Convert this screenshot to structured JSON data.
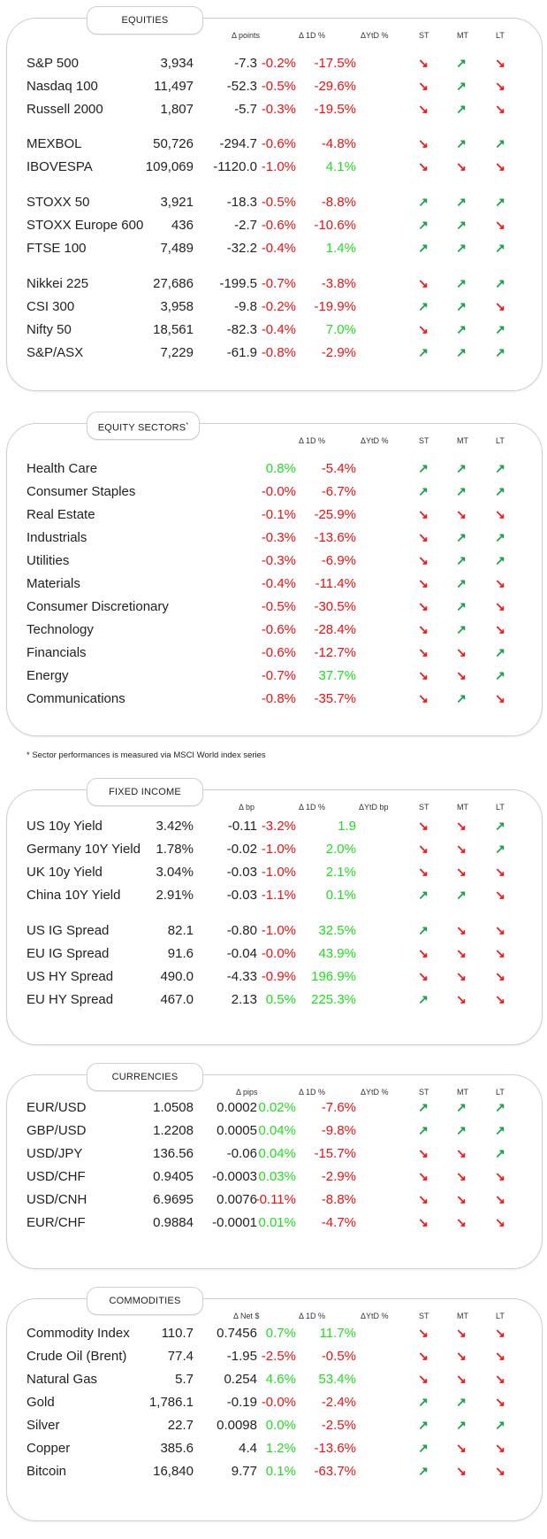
{
  "equities": {
    "title": "EQUITIES",
    "headers": [
      "Δ points",
      "Δ 1D %",
      "ΔYtD %",
      "ST",
      "MT",
      "LT"
    ],
    "groups": [
      [
        {
          "name": "S&P 500",
          "value": "3,934",
          "chg": "-7.3",
          "d1": "-0.2%",
          "ytd": "-17.5%",
          "st": "down",
          "mt": "up",
          "lt": "down"
        },
        {
          "name": "Nasdaq 100",
          "value": "11,497",
          "chg": "-52.3",
          "d1": "-0.5%",
          "ytd": "-29.6%",
          "st": "down",
          "mt": "up",
          "lt": "down"
        },
        {
          "name": "Russell 2000",
          "value": "1,807",
          "chg": "-5.7",
          "d1": "-0.3%",
          "ytd": "-19.5%",
          "st": "down",
          "mt": "up",
          "lt": "down"
        }
      ],
      [
        {
          "name": "MEXBOL",
          "value": "50,726",
          "chg": "-294.7",
          "d1": "-0.6%",
          "ytd": "-4.8%",
          "st": "down",
          "mt": "up",
          "lt": "up"
        },
        {
          "name": "IBOVESPA",
          "value": "109,069",
          "chg": "-1120.0",
          "d1": "-1.0%",
          "ytd": "4.1%",
          "st": "down",
          "mt": "down",
          "lt": "down"
        }
      ],
      [
        {
          "name": "STOXX 50",
          "value": "3,921",
          "chg": "-18.3",
          "d1": "-0.5%",
          "ytd": "-8.8%",
          "st": "up",
          "mt": "up",
          "lt": "up"
        },
        {
          "name": "STOXX Europe 600",
          "value": "436",
          "chg": "-2.7",
          "d1": "-0.6%",
          "ytd": "-10.6%",
          "st": "up",
          "mt": "up",
          "lt": "down"
        },
        {
          "name": "FTSE 100",
          "value": "7,489",
          "chg": "-32.2",
          "d1": "-0.4%",
          "ytd": "1.4%",
          "st": "up",
          "mt": "up",
          "lt": "up"
        }
      ],
      [
        {
          "name": "Nikkei 225",
          "value": "27,686",
          "chg": "-199.5",
          "d1": "-0.7%",
          "ytd": "-3.8%",
          "st": "down",
          "mt": "up",
          "lt": "up"
        },
        {
          "name": "CSI 300",
          "value": "3,958",
          "chg": "-9.8",
          "d1": "-0.2%",
          "ytd": "-19.9%",
          "st": "up",
          "mt": "up",
          "lt": "down"
        },
        {
          "name": "Nifty  50",
          "value": "18,561",
          "chg": "-82.3",
          "d1": "-0.4%",
          "ytd": "7.0%",
          "st": "down",
          "mt": "up",
          "lt": "up"
        },
        {
          "name": "S&P/ASX",
          "value": "7,229",
          "chg": "-61.9",
          "d1": "-0.8%",
          "ytd": "-2.9%",
          "st": "up",
          "mt": "up",
          "lt": "up"
        }
      ]
    ]
  },
  "sectors": {
    "title": "EQUITY SECTORS",
    "title_mark": "*",
    "headers": [
      "Δ 1D %",
      "ΔYtD %",
      "ST",
      "MT",
      "LT"
    ],
    "rows": [
      {
        "name": "Health Care",
        "d1": "0.8%",
        "ytd": "-5.4%",
        "st": "up",
        "mt": "up",
        "lt": "up"
      },
      {
        "name": "Consumer Staples",
        "d1": "-0.0%",
        "ytd": "-6.7%",
        "st": "up",
        "mt": "up",
        "lt": "up"
      },
      {
        "name": "Real Estate",
        "d1": "-0.1%",
        "ytd": "-25.9%",
        "st": "down",
        "mt": "down",
        "lt": "down"
      },
      {
        "name": "Industrials",
        "d1": "-0.3%",
        "ytd": "-13.6%",
        "st": "down",
        "mt": "up",
        "lt": "up"
      },
      {
        "name": "Utilities",
        "d1": "-0.3%",
        "ytd": "-6.9%",
        "st": "down",
        "mt": "up",
        "lt": "up"
      },
      {
        "name": "Materials",
        "d1": "-0.4%",
        "ytd": "-11.4%",
        "st": "down",
        "mt": "up",
        "lt": "down"
      },
      {
        "name": "Consumer Discretionary",
        "d1": "-0.5%",
        "ytd": "-30.5%",
        "st": "down",
        "mt": "up",
        "lt": "down"
      },
      {
        "name": "Technology",
        "d1": "-0.6%",
        "ytd": "-28.4%",
        "st": "down",
        "mt": "up",
        "lt": "down"
      },
      {
        "name": "Financials",
        "d1": "-0.6%",
        "ytd": "-12.7%",
        "st": "down",
        "mt": "down",
        "lt": "up"
      },
      {
        "name": "Energy",
        "d1": "-0.7%",
        "ytd": "37.7%",
        "st": "down",
        "mt": "down",
        "lt": "up"
      },
      {
        "name": "Communications",
        "d1": "-0.8%",
        "ytd": "-35.7%",
        "st": "down",
        "mt": "up",
        "lt": "down"
      }
    ],
    "footnote": "* Sector performances is measured via MSCI World index series"
  },
  "fixed_income": {
    "title": "FIXED INCOME",
    "headers": [
      "Δ bp",
      "Δ 1D %",
      "ΔYtD bp",
      "ST",
      "MT",
      "LT"
    ],
    "groups": [
      [
        {
          "name": "US 10y Yield",
          "value": "3.42%",
          "chg": "-0.11",
          "d1": "-3.2%",
          "ytd": "1.9",
          "st": "down",
          "mt": "down",
          "lt": "up"
        },
        {
          "name": "Germany 10Y Yield",
          "value": "1.78%",
          "chg": "-0.02",
          "d1": "-1.0%",
          "ytd": "2.0%",
          "st": "down",
          "mt": "down",
          "lt": "up"
        },
        {
          "name": "UK 10y Yield",
          "value": "3.04%",
          "chg": "-0.03",
          "d1": "-1.0%",
          "ytd": "2.1%",
          "st": "down",
          "mt": "down",
          "lt": "down"
        },
        {
          "name": "China 10Y Yield",
          "value": "2.91%",
          "chg": "-0.03",
          "d1": "-1.1%",
          "ytd": "0.1%",
          "st": "up",
          "mt": "up",
          "lt": "down"
        }
      ],
      [
        {
          "name": "US IG Spread",
          "value": "82.1",
          "chg": "-0.80",
          "d1": "-1.0%",
          "ytd": "32.5%",
          "st": "up",
          "mt": "down",
          "lt": "down"
        },
        {
          "name": "EU IG Spread",
          "value": "91.6",
          "chg": "-0.04",
          "d1": "-0.0%",
          "ytd": "43.9%",
          "st": "down",
          "mt": "down",
          "lt": "down"
        },
        {
          "name": "US HY Spread",
          "value": "490.0",
          "chg": "-4.33",
          "d1": "-0.9%",
          "ytd": "196.9%",
          "st": "down",
          "mt": "down",
          "lt": "down"
        },
        {
          "name": "EU HY Spread",
          "value": "467.0",
          "chg": "2.13",
          "d1": "0.5%",
          "ytd": "225.3%",
          "st": "up",
          "mt": "down",
          "lt": "down"
        }
      ]
    ]
  },
  "currencies": {
    "title": "CURRENCIES",
    "headers": [
      "Δ pips",
      "Δ 1D %",
      "ΔYtD %",
      "ST",
      "MT",
      "LT"
    ],
    "rows": [
      {
        "name": "EUR/USD",
        "value": "1.0508",
        "chg": "0.0002",
        "d1": "0.02%",
        "ytd": "-7.6%",
        "st": "up",
        "mt": "up",
        "lt": "up"
      },
      {
        "name": "GBP/USD",
        "value": "1.2208",
        "chg": "0.0005",
        "d1": "0.04%",
        "ytd": "-9.8%",
        "st": "up",
        "mt": "up",
        "lt": "up"
      },
      {
        "name": "USD/JPY",
        "value": "136.56",
        "chg": "-0.06",
        "d1": "0.04%",
        "ytd": "-15.7%",
        "st": "down",
        "mt": "down",
        "lt": "up"
      },
      {
        "name": "USD/CHF",
        "value": "0.9405",
        "chg": "-0.0003",
        "d1": "0.03%",
        "ytd": "-2.9%",
        "st": "down",
        "mt": "down",
        "lt": "down"
      },
      {
        "name": "USD/CNH",
        "value": "6.9695",
        "chg": "0.0076",
        "d1": "-0.11%",
        "ytd": "-8.8%",
        "st": "down",
        "mt": "down",
        "lt": "down"
      },
      {
        "name": "EUR/CHF",
        "value": "0.9884",
        "chg": "-0.0001",
        "d1": "0.01%",
        "ytd": "-4.7%",
        "st": "down",
        "mt": "down",
        "lt": "down"
      }
    ]
  },
  "commodities": {
    "title": "COMMODITIES",
    "headers": [
      "Δ Net $",
      "Δ 1D %",
      "ΔYtD %",
      "ST",
      "MT",
      "LT"
    ],
    "rows": [
      {
        "name": "Commodity Index",
        "value": "110.7",
        "chg": "0.7456",
        "d1": "0.7%",
        "ytd": "11.7%",
        "st": "down",
        "mt": "down",
        "lt": "down"
      },
      {
        "name": "Crude Oil (Brent)",
        "value": "77.4",
        "chg": "-1.95",
        "d1": "-2.5%",
        "ytd": "-0.5%",
        "st": "down",
        "mt": "down",
        "lt": "down"
      },
      {
        "name": "Natural Gas",
        "value": "5.7",
        "chg": "0.254",
        "d1": "4.6%",
        "ytd": "53.4%",
        "st": "down",
        "mt": "down",
        "lt": "down"
      },
      {
        "name": "Gold",
        "value": "1,786.1",
        "chg": "-0.19",
        "d1": "-0.0%",
        "ytd": "-2.4%",
        "st": "up",
        "mt": "up",
        "lt": "down"
      },
      {
        "name": "Silver",
        "value": "22.7",
        "chg": "0.0098",
        "d1": "0.0%",
        "ytd": "-2.5%",
        "st": "up",
        "mt": "up",
        "lt": "up"
      },
      {
        "name": "Copper",
        "value": "385.6",
        "chg": "4.4",
        "d1": "1.2%",
        "ytd": "-13.6%",
        "st": "up",
        "mt": "down",
        "lt": "down"
      },
      {
        "name": "Bitcoin",
        "value": "16,840",
        "chg": "9.77",
        "d1": "0.1%",
        "ytd": "-63.7%",
        "st": "up",
        "mt": "down",
        "lt": "down"
      }
    ]
  },
  "colors": {
    "positive": "#22dd22",
    "negative": "#ee1111",
    "arrow_up": "#1aa04a",
    "arrow_down": "#ee1a1a",
    "border": "#cfcfcf"
  },
  "icons": {
    "up": "trend-up-arrow-icon",
    "down": "trend-down-arrow-icon"
  }
}
